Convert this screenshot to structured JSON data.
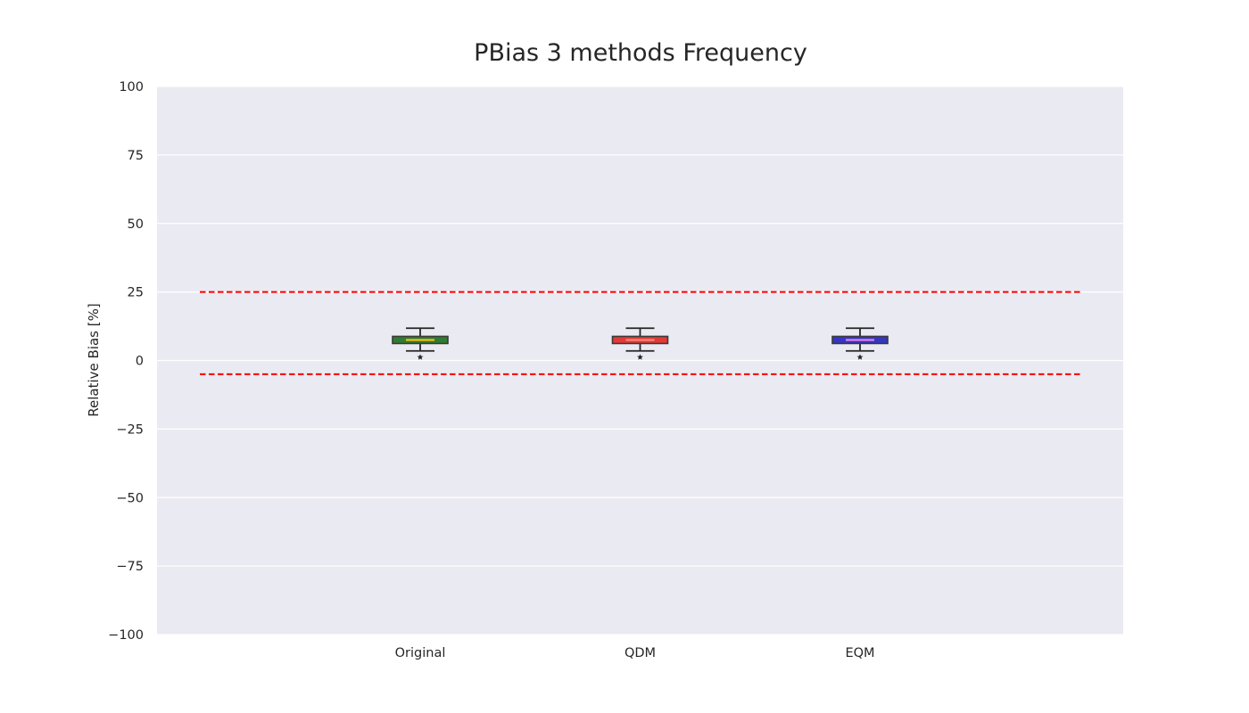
{
  "chart_data": {
    "type": "box",
    "title": "PBias 3 methods Frequency",
    "xlabel": "",
    "ylabel": "Relative Bias [%]",
    "ylim": [
      -100,
      100
    ],
    "y_ticks": [
      "100",
      "75",
      "50",
      "25",
      "0",
      "−25",
      "−50",
      "−75",
      "−100"
    ],
    "y_tick_values": [
      100,
      75,
      50,
      25,
      0,
      -25,
      -50,
      -75,
      -100
    ],
    "grid": true,
    "background_color": "#eaeaf2",
    "reference_lines": [
      {
        "y": 25,
        "color": "#ff0000",
        "style": "dashed"
      },
      {
        "y": -5,
        "color": "#ff0000",
        "style": "dashed"
      }
    ],
    "categories": [
      "Original",
      "QDM",
      "EQM"
    ],
    "boxes": [
      {
        "category": "Original",
        "whisker_low": 3.5,
        "q1": 6.2,
        "median": 7.5,
        "q3": 8.8,
        "whisker_high": 11.8,
        "outliers": [
          1.2
        ],
        "face_color": "#2e7d32",
        "median_color": "#ffc107"
      },
      {
        "category": "QDM",
        "whisker_low": 3.5,
        "q1": 6.2,
        "median": 7.5,
        "q3": 8.8,
        "whisker_high": 11.8,
        "outliers": [
          1.2
        ],
        "face_color": "#e53935",
        "median_color": "#ff8a80"
      },
      {
        "category": "EQM",
        "whisker_low": 3.5,
        "q1": 6.2,
        "median": 7.5,
        "q3": 8.8,
        "whisker_high": 11.8,
        "outliers": [
          1.2
        ],
        "face_color": "#3535c8",
        "median_color": "#ee82ee"
      }
    ]
  }
}
